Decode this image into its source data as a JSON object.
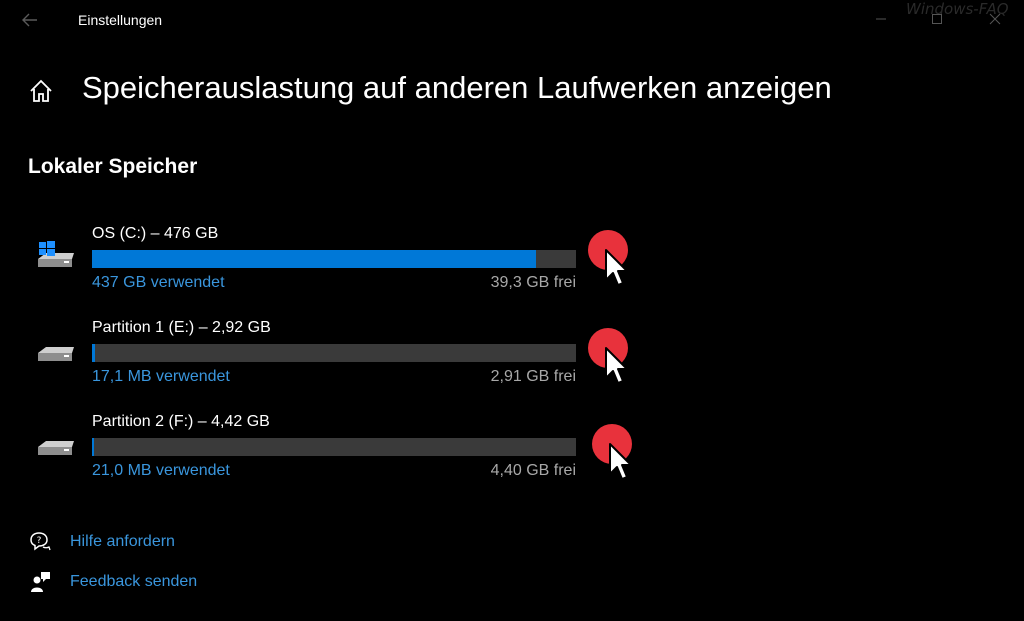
{
  "titlebar": {
    "back_icon": "back-arrow-icon",
    "app_title": "Einstellungen",
    "watermark": "Windows-FAQ"
  },
  "page": {
    "home_icon": "home-icon",
    "title": "Speicherauslastung auf anderen Laufwerken anzeigen"
  },
  "section": {
    "title": "Lokaler Speicher"
  },
  "drives": [
    {
      "name": "OS (C:) – 476 GB",
      "used": "437 GB verwendet",
      "free": "39,3 GB frei",
      "usage_fraction": 0.918,
      "icon": "windows-drive-icon"
    },
    {
      "name": "Partition 1 (E:) – 2,92 GB",
      "used": "17,1 MB verwendet",
      "free": "2,91 GB frei",
      "usage_fraction": 0.006,
      "icon": "drive-icon"
    },
    {
      "name": "Partition 2 (F:) – 4,42 GB",
      "used": "21,0 MB verwendet",
      "free": "4,40 GB frei",
      "usage_fraction": 0.005,
      "icon": "drive-icon"
    }
  ],
  "links": [
    {
      "label": "Hilfe anfordern",
      "icon": "help-chat-icon"
    },
    {
      "label": "Feedback senden",
      "icon": "feedback-icon"
    }
  ],
  "colors": {
    "accent": "#0078d7",
    "link": "#3a96dd",
    "bar_track": "#3a3a3a",
    "free_text": "#a8a8a8",
    "click_marker": "#e8323c"
  }
}
